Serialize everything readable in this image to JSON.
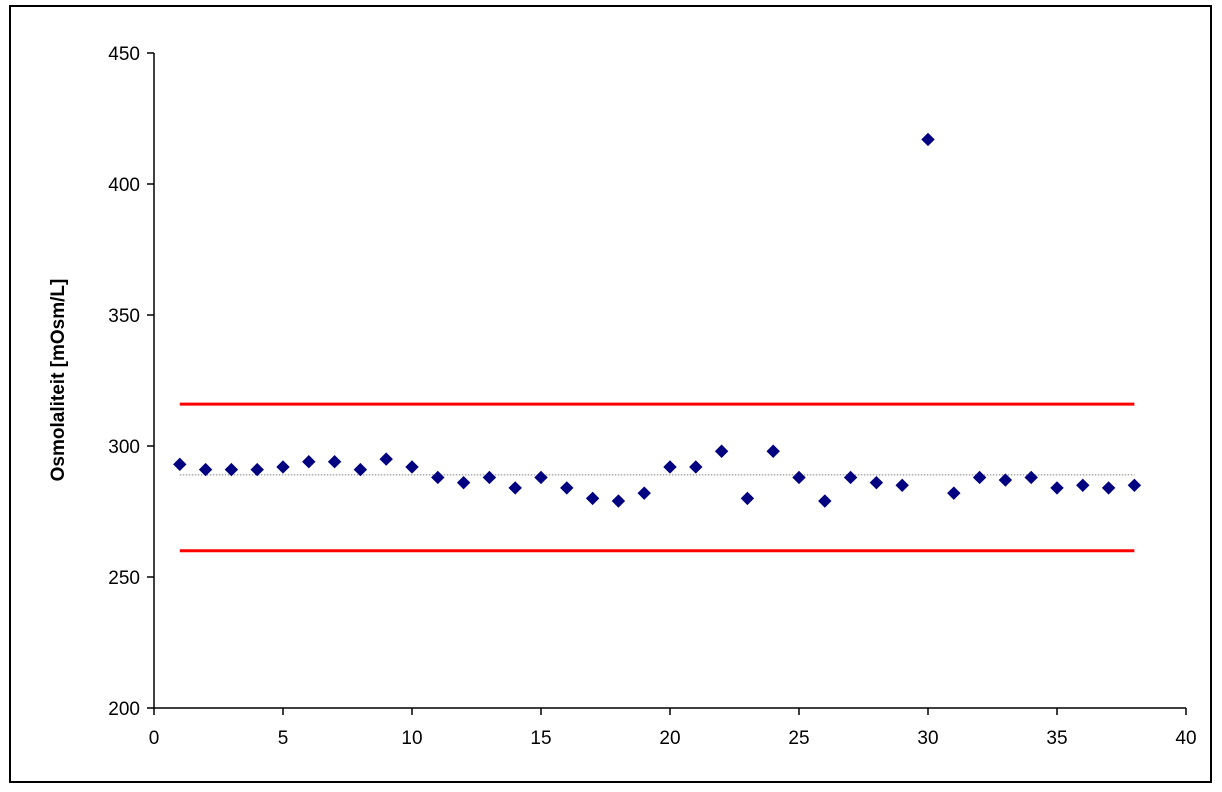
{
  "chart_data": {
    "type": "scatter",
    "title": "",
    "xlabel": "",
    "ylabel": "Osmolaliteit [mOsm/L]",
    "xlim": [
      0,
      40
    ],
    "ylim": [
      200,
      450
    ],
    "x_ticks": [
      0,
      5,
      10,
      15,
      20,
      25,
      30,
      35,
      40
    ],
    "y_ticks": [
      200,
      250,
      300,
      350,
      400,
      450
    ],
    "x_tick_labels": [
      "0",
      "5",
      "10",
      "15",
      "20",
      "25",
      "30",
      "35",
      "40"
    ],
    "y_tick_labels": [
      "200",
      "250",
      "300",
      "350",
      "400",
      "450"
    ],
    "grid": false,
    "legend": "none",
    "marker_color": "#000080",
    "series": [
      {
        "x": [
          1,
          2,
          3,
          4,
          5,
          6,
          7,
          8,
          9,
          10,
          11,
          12,
          13,
          14,
          15,
          16,
          17,
          18,
          19,
          20,
          21,
          22,
          23,
          24,
          25,
          26,
          27,
          28,
          29,
          30,
          31,
          32,
          33,
          34,
          35,
          36,
          37,
          38
        ],
        "y": [
          293,
          291,
          291,
          291,
          292,
          294,
          294,
          291,
          295,
          292,
          288,
          286,
          288,
          284,
          288,
          284,
          280,
          279,
          282,
          292,
          292,
          298,
          280,
          298,
          288,
          279,
          288,
          286,
          285,
          417,
          282,
          288,
          287,
          288,
          284,
          285,
          284,
          285
        ]
      }
    ],
    "reference_lines": [
      {
        "y": 316,
        "x_range": [
          1,
          38
        ],
        "color": "#ff0000",
        "style": "solid"
      },
      {
        "y": 260,
        "x_range": [
          1,
          38
        ],
        "color": "#ff0000",
        "style": "solid"
      },
      {
        "y": 289,
        "x_range": [
          1,
          38
        ],
        "color": "#808080",
        "style": "dotted"
      }
    ]
  }
}
